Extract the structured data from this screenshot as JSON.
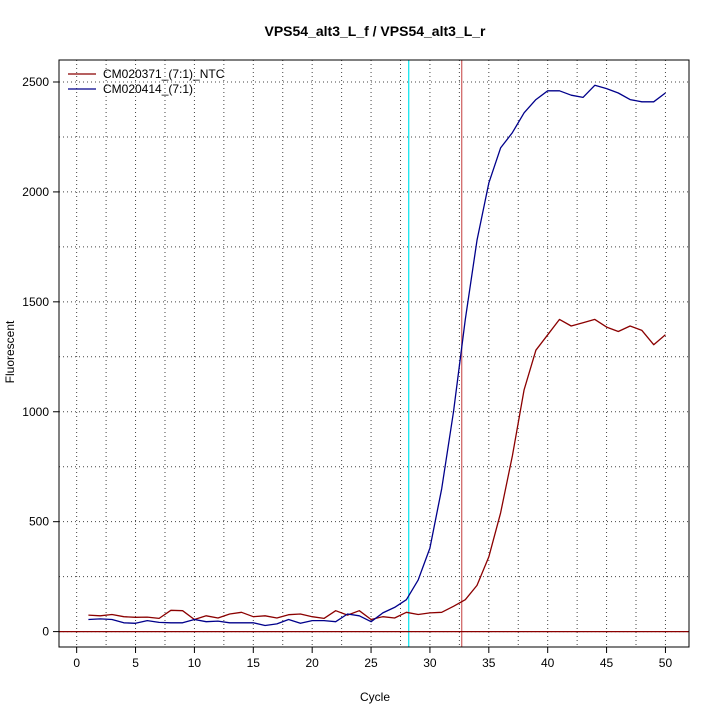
{
  "chart_data": {
    "type": "line",
    "title": "VPS54_alt3_L_f / VPS54_alt3_L_r",
    "xlabel": "Cycle",
    "ylabel": "Fluorescent",
    "xlim": [
      -1.5,
      52
    ],
    "ylim": [
      -70,
      2600
    ],
    "xticks": [
      0,
      5,
      10,
      15,
      20,
      25,
      30,
      35,
      40,
      45,
      50
    ],
    "yticks": [
      0,
      500,
      1000,
      1500,
      2000,
      2500
    ],
    "grid": true,
    "grid_style": "dotted",
    "legend_position": "top-left",
    "threshold_y": 0,
    "vertical_markers": [
      {
        "x": 28.2,
        "color": "#00e5ee"
      },
      {
        "x": 32.7,
        "color": "#cd5c5c"
      }
    ],
    "series": [
      {
        "name": "CM020371_(7:1)_NTC",
        "color": "#8b0000",
        "x": [
          1,
          2,
          3,
          4,
          5,
          6,
          7,
          8,
          9,
          10,
          11,
          12,
          13,
          14,
          15,
          16,
          17,
          18,
          19,
          20,
          21,
          22,
          23,
          24,
          25,
          26,
          27,
          28,
          29,
          30,
          31,
          32,
          33,
          34,
          35,
          36,
          37,
          38,
          39,
          40,
          41,
          42,
          43,
          44,
          45,
          46,
          47,
          48,
          49,
          50
        ],
        "values": [
          75,
          72,
          78,
          68,
          65,
          66,
          60,
          97,
          95,
          55,
          72,
          62,
          80,
          88,
          68,
          72,
          62,
          77,
          80,
          68,
          60,
          95,
          75,
          95,
          55,
          68,
          62,
          88,
          78,
          85,
          88,
          115,
          145,
          210,
          340,
          540,
          800,
          1100,
          1280,
          1350,
          1420,
          1390,
          1405,
          1420,
          1385,
          1365,
          1390,
          1370,
          1305,
          1350
        ]
      },
      {
        "name": "CM020414_(7:1)",
        "color": "#00008b",
        "x": [
          1,
          2,
          3,
          4,
          5,
          6,
          7,
          8,
          9,
          10,
          11,
          12,
          13,
          14,
          15,
          16,
          17,
          18,
          19,
          20,
          21,
          22,
          23,
          24,
          25,
          26,
          27,
          28,
          29,
          30,
          31,
          32,
          33,
          34,
          35,
          36,
          37,
          38,
          39,
          40,
          41,
          42,
          43,
          44,
          45,
          46,
          47,
          48,
          49,
          50
        ],
        "values": [
          55,
          58,
          55,
          40,
          38,
          50,
          42,
          40,
          40,
          55,
          45,
          48,
          40,
          40,
          40,
          28,
          35,
          55,
          38,
          50,
          50,
          45,
          80,
          72,
          45,
          85,
          110,
          145,
          235,
          380,
          650,
          1000,
          1420,
          1780,
          2040,
          2200,
          2270,
          2360,
          2420,
          2460,
          2460,
          2440,
          2430,
          2485,
          2470,
          2450,
          2420,
          2410,
          2410,
          2450
        ]
      }
    ]
  }
}
